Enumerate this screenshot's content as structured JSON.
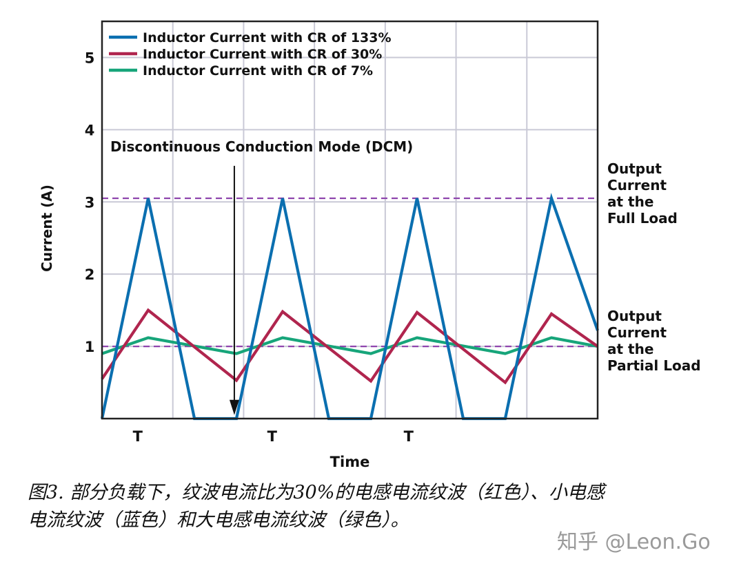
{
  "chart_data": {
    "type": "line",
    "xlabel": "Time",
    "ylabel": "Current (A)",
    "ylim": [
      0,
      5.5
    ],
    "yticks": [
      1,
      2,
      3,
      4,
      5
    ],
    "x_period_labels": [
      "T",
      "T",
      "T"
    ],
    "grid": true,
    "legend_position": "top-left",
    "series": [
      {
        "name": "Inductor Current with CR of 133%",
        "color": "#0b6fb0",
        "x": [
          0.0,
          0.11,
          0.22,
          0.27,
          0.32,
          0.43,
          0.54,
          0.59,
          0.64,
          0.75,
          0.86,
          0.91,
          0.96,
          1.07,
          1.18
        ],
        "y": [
          0,
          3.05,
          0,
          0,
          0,
          3.05,
          0,
          0,
          0,
          3.05,
          0,
          0,
          0,
          3.05,
          1.22
        ]
      },
      {
        "name": "Inductor Current with CR of 30%",
        "color": "#b0254e",
        "x": [
          0.0,
          0.11,
          0.32,
          0.43,
          0.64,
          0.75,
          0.96,
          1.07,
          1.18
        ],
        "y": [
          0.55,
          1.5,
          0.53,
          1.48,
          0.52,
          1.47,
          0.5,
          1.45,
          1.0
        ]
      },
      {
        "name": "Inductor Current with CR of 7%",
        "color": "#17a57a",
        "x": [
          0.0,
          0.11,
          0.32,
          0.43,
          0.64,
          0.75,
          0.96,
          1.07,
          1.18
        ],
        "y": [
          0.9,
          1.12,
          0.9,
          1.12,
          0.9,
          1.12,
          0.9,
          1.12,
          1.0
        ]
      }
    ],
    "reference_lines": [
      {
        "y": 3.05,
        "color": "#8e44ad",
        "label": [
          "Output",
          "Current",
          "at the",
          "Full Load"
        ]
      },
      {
        "y": 1.0,
        "color": "#8e44ad",
        "label": [
          "Output",
          "Current",
          "at the",
          "Partial Load"
        ]
      }
    ],
    "annotation": {
      "text": "Discontinuous Conduction Mode (DCM)",
      "arrow_x": 0.315,
      "arrow_from_y": 3.5,
      "arrow_to_y": 0.05
    }
  },
  "caption": {
    "line1": "图3. 部分负载下，纹波电流比为30%的电感电流纹波（红色）、小电感",
    "line2": "电流纹波（蓝色）和大电感电流纹波（绿色）。"
  },
  "watermark": "知乎 @Leon.Go"
}
